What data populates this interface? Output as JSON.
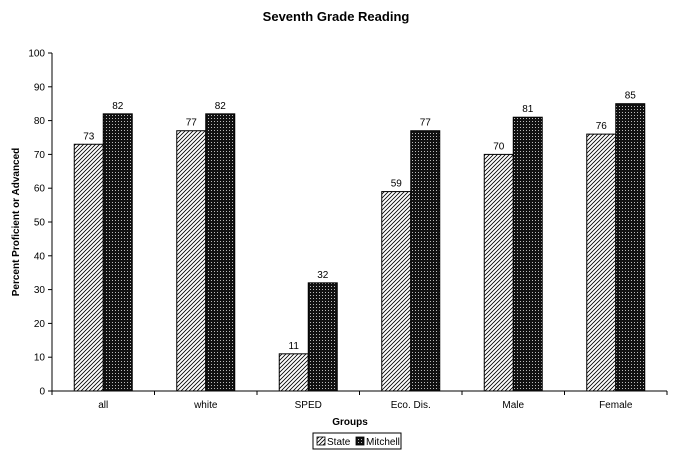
{
  "chart_data": {
    "type": "bar",
    "title": "Seventh Grade Reading",
    "xlabel": "Groups",
    "ylabel": "Percent Proficient or Advanced",
    "categories": [
      "all",
      "white",
      "SPED",
      "Eco. Dis.",
      "Male",
      "Female"
    ],
    "series": [
      {
        "name": "State",
        "values": [
          73,
          77,
          11,
          59,
          70,
          76
        ],
        "pattern": "diagonal-hatch",
        "color": "#ffffff"
      },
      {
        "name": "Mitchell",
        "values": [
          82,
          82,
          32,
          77,
          81,
          85
        ],
        "pattern": "dark-dotted",
        "color": "#111111"
      }
    ],
    "ylim": [
      0,
      100
    ],
    "yticks": [
      0,
      10,
      20,
      30,
      40,
      50,
      60,
      70,
      80,
      90,
      100
    ],
    "grid": false,
    "legend": "bottom-center"
  }
}
